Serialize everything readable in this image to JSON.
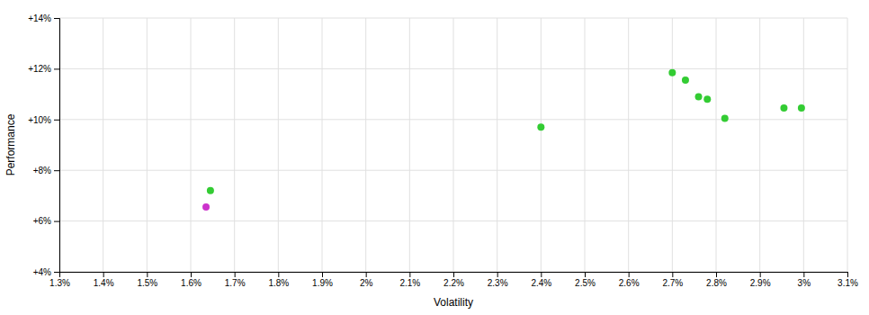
{
  "chart_data": {
    "type": "scatter",
    "xlabel": "Volatility",
    "ylabel": "Performance",
    "xlim": [
      0.013,
      0.031
    ],
    "ylim": [
      0.04,
      0.14
    ],
    "xticks": [
      {
        "value": 0.013,
        "label": "1.3%"
      },
      {
        "value": 0.014,
        "label": "1.4%"
      },
      {
        "value": 0.015,
        "label": "1.5%"
      },
      {
        "value": 0.016,
        "label": "1.6%"
      },
      {
        "value": 0.017,
        "label": "1.7%"
      },
      {
        "value": 0.018,
        "label": "1.8%"
      },
      {
        "value": 0.019,
        "label": "1.9%"
      },
      {
        "value": 0.02,
        "label": "2%"
      },
      {
        "value": 0.021,
        "label": "2.1%"
      },
      {
        "value": 0.022,
        "label": "2.2%"
      },
      {
        "value": 0.023,
        "label": "2.3%"
      },
      {
        "value": 0.024,
        "label": "2.4%"
      },
      {
        "value": 0.025,
        "label": "2.5%"
      },
      {
        "value": 0.026,
        "label": "2.6%"
      },
      {
        "value": 0.027,
        "label": "2.7%"
      },
      {
        "value": 0.028,
        "label": "2.8%"
      },
      {
        "value": 0.029,
        "label": "2.9%"
      },
      {
        "value": 0.03,
        "label": "3%"
      },
      {
        "value": 0.031,
        "label": "3.1%"
      }
    ],
    "yticks": [
      {
        "value": 0.04,
        "label": "+4%"
      },
      {
        "value": 0.06,
        "label": "+6%"
      },
      {
        "value": 0.08,
        "label": "+8%"
      },
      {
        "value": 0.1,
        "label": "+10%"
      },
      {
        "value": 0.12,
        "label": "+12%"
      },
      {
        "value": 0.14,
        "label": "+14%"
      }
    ],
    "grid": true,
    "series": [
      {
        "color": "#33cc33",
        "x": [
          0.01645,
          0.024,
          0.027,
          0.0273,
          0.0276,
          0.0278,
          0.0282,
          0.02955,
          0.02995
        ],
        "values": [
          0.072,
          0.097,
          0.1185,
          0.1155,
          0.109,
          0.108,
          0.1005,
          0.1045,
          0.1045
        ]
      },
      {
        "color": "#cc33cc",
        "x": [
          0.01635
        ],
        "values": [
          0.0655
        ]
      }
    ]
  }
}
